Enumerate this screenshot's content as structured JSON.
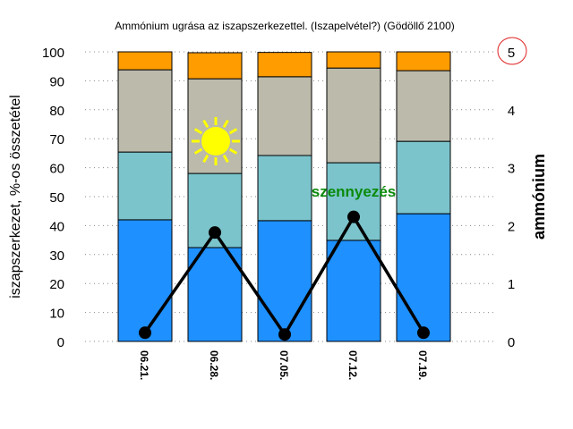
{
  "chart_data": {
    "type": "bar",
    "title": "Ammónium ugrása az iszapszerkezettel. (Iszapelvétel?) (Gödöllő 2100)",
    "ylabel": "iszapszerkezet, %-os összetétel",
    "y2label": "ammónium",
    "categories": [
      "06.21.",
      "06.28.",
      "07.05.",
      "07.12.",
      "07.19."
    ],
    "ylim": [
      0,
      100
    ],
    "y2lim": [
      0,
      5
    ],
    "yticks": [
      0,
      10,
      20,
      30,
      40,
      50,
      60,
      70,
      80,
      90,
      100
    ],
    "y2ticks": [
      0,
      1,
      2,
      3,
      4,
      5
    ],
    "grid": true,
    "stacked": true,
    "series": [
      {
        "name": "blue",
        "color": "#1e90ff",
        "values": [
          42,
          32.4,
          41.7,
          34.9,
          44.1
        ]
      },
      {
        "name": "teal",
        "color": "#7bc4cc",
        "values": [
          23.4,
          25.6,
          22.5,
          26.8,
          25
        ]
      },
      {
        "name": "gray",
        "color": "#bbbaab",
        "values": [
          28.4,
          32.7,
          27.2,
          32.7,
          24.4
        ]
      },
      {
        "name": "orange",
        "color": "#ff9c00",
        "values": [
          6.2,
          9,
          8.4,
          5.6,
          6.5
        ]
      }
    ],
    "line": {
      "name": "ammónium",
      "axis": "right",
      "color": "#000000",
      "values": [
        0.15,
        1.88,
        0.12,
        2.15,
        0.15
      ]
    },
    "annotations": {
      "pollution_label": "szennyezés",
      "highlight_tick": "5",
      "sun_icon": "sun-icon"
    }
  }
}
